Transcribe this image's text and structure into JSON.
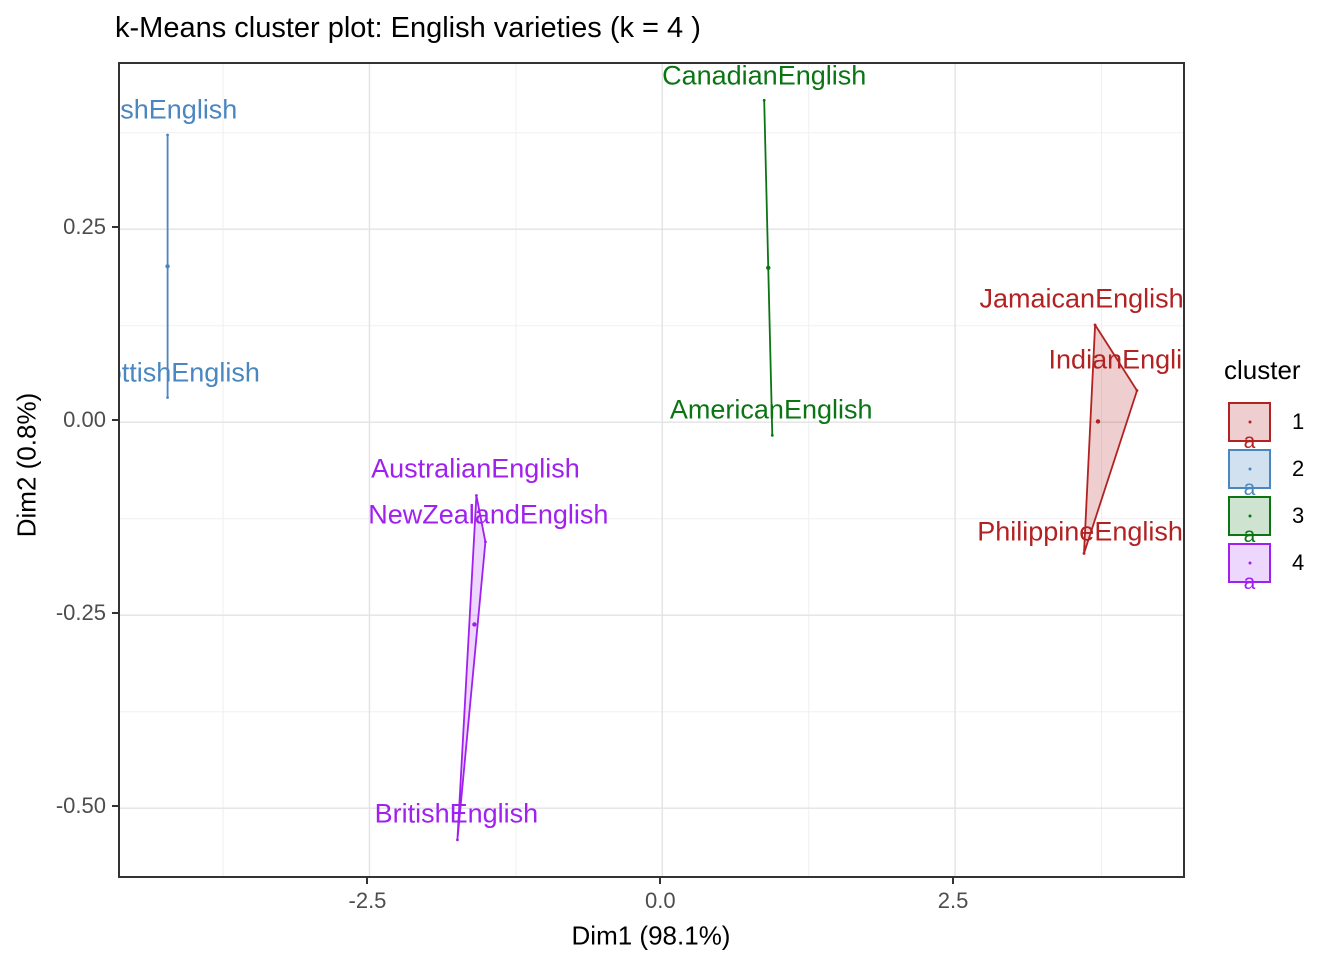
{
  "title": "k-Means cluster plot: English varieties (k = 4 )",
  "chart_data": {
    "type": "scatter",
    "title": "k-Means cluster plot: English varieties (k = 4 )",
    "xlabel": "Dim1 (98.1%)",
    "ylabel": "Dim2 (0.8%)",
    "xlim": [
      -4.63,
      4.48
    ],
    "ylim": [
      -0.593,
      0.464
    ],
    "x_ticks": [
      -2.5,
      0.0,
      2.5
    ],
    "x_tick_labels": [
      "-2.5",
      "0.0",
      "2.5"
    ],
    "x_minor_ticks": [
      -3.75,
      -1.25,
      1.25,
      3.75
    ],
    "y_ticks": [
      0.25,
      0.0,
      -0.25,
      -0.5
    ],
    "y_tick_labels": [
      "0.25",
      "0.00",
      "-0.25",
      "-0.50"
    ],
    "y_minor_ticks": [
      0.375,
      0.125,
      -0.125,
      -0.375
    ],
    "grid": "major+minor on white, panel border",
    "grid_major_color": "#e3e3e3",
    "grid_minor_color": "#f0f0f0",
    "legend_position": "right",
    "legend_title": "cluster",
    "legend_items": [
      {
        "label": "1",
        "color": "#b22222",
        "fill": "rgba(178,34,34,0.22)"
      },
      {
        "label": "2",
        "color": "#4a86c0",
        "fill": "rgba(74,134,192,0.25)"
      },
      {
        "label": "3",
        "color": "#0b7413",
        "fill": "rgba(11,116,19,0.20)"
      },
      {
        "label": "4",
        "color": "#a020f0",
        "fill": "rgba(160,32,240,0.18)"
      }
    ],
    "clusters": [
      {
        "id": "1",
        "color": "#b22222",
        "fill": "rgba(178,34,34,0.22)",
        "points": [
          {
            "label": "JamaicanEnglish",
            "x": 3.695,
            "y": 0.126,
            "label_x": 3.58,
            "label_y": 0.159
          },
          {
            "label": "IndianEnglish",
            "x": 4.053,
            "y": 0.041,
            "label_x": 3.99,
            "label_y": 0.08
          },
          {
            "label": "PhilippineEnglish",
            "x": 3.601,
            "y": -0.17,
            "label_x": 3.567,
            "label_y": -0.142
          }
        ],
        "hull": [
          [
            3.695,
            0.126
          ],
          [
            4.053,
            0.041
          ],
          [
            3.601,
            -0.17
          ]
        ],
        "centroid": [
          3.72,
          0.001
        ]
      },
      {
        "id": "2",
        "color": "#4a86c0",
        "fill": "rgba(74,134,192,0.25)",
        "points": [
          {
            "label": "IrishEnglish",
            "x": -4.224,
            "y": 0.372,
            "label_x": -4.224,
            "label_y": 0.404
          },
          {
            "label": "ScottishEnglish",
            "x": -4.224,
            "y": 0.032,
            "label_x": -4.224,
            "label_y": 0.0635
          }
        ],
        "hull": [
          [
            -4.224,
            0.372
          ],
          [
            -4.224,
            0.032
          ]
        ],
        "centroid": [
          -4.224,
          0.202
        ]
      },
      {
        "id": "3",
        "color": "#0b7413",
        "fill": "rgba(11,116,19,0.20)",
        "points": [
          {
            "label": "CanadianEnglish",
            "x": 0.87,
            "y": 0.417,
            "label_x": 0.87,
            "label_y": 0.448
          },
          {
            "label": "AmericanEnglish",
            "x": 0.939,
            "y": -0.017,
            "label_x": 0.93,
            "label_y": 0.0155
          }
        ],
        "hull": [
          [
            0.87,
            0.417
          ],
          [
            0.939,
            -0.017
          ]
        ],
        "centroid": [
          0.905,
          0.2
        ]
      },
      {
        "id": "4",
        "color": "#a020f0",
        "fill": "rgba(160,32,240,0.18)",
        "points": [
          {
            "label": "AustralianEnglish",
            "x": -1.587,
            "y": -0.095,
            "label_x": -1.595,
            "label_y": -0.061
          },
          {
            "label": "NewZealandEnglish",
            "x": -1.51,
            "y": -0.155,
            "label_x": -1.485,
            "label_y": -0.12
          },
          {
            "label": "BritishEnglish",
            "x": -1.749,
            "y": -0.541,
            "label_x": -1.758,
            "label_y": -0.508
          }
        ],
        "hull": [
          [
            -1.587,
            -0.095
          ],
          [
            -1.51,
            -0.155
          ],
          [
            -1.749,
            -0.541
          ]
        ],
        "centroid": [
          -1.604,
          -0.262
        ]
      }
    ]
  }
}
